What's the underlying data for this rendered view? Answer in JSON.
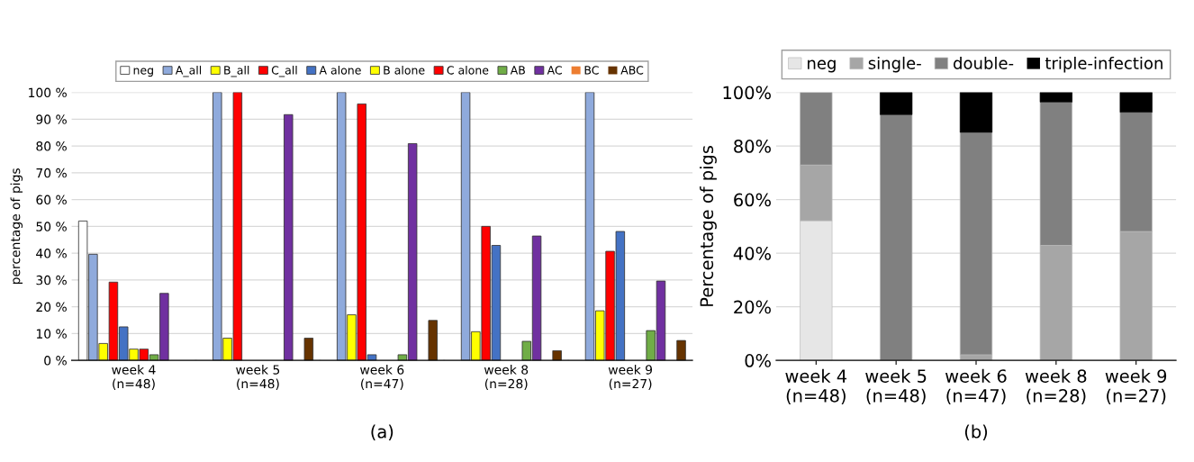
{
  "chart_data": [
    {
      "type": "bar",
      "ylabel": "percentage of pigs",
      "categories": [
        "week 4\n(n=48)",
        "week 5\n(n=48)",
        "week 6\n(n=47)",
        "week 8\n(n=28)",
        "week 9\n(n=27)"
      ],
      "ylim": [
        0,
        100
      ],
      "yticks": [
        {
          "value": 0,
          "label": "0 %"
        },
        {
          "value": 10,
          "label": "10 %"
        },
        {
          "value": 20,
          "label": "20 %"
        },
        {
          "value": 30,
          "label": "30 %"
        },
        {
          "value": 40,
          "label": "40 %"
        },
        {
          "value": 50,
          "label": "50 %"
        },
        {
          "value": 60,
          "label": "60 %"
        },
        {
          "value": 70,
          "label": "70 %"
        },
        {
          "value": 80,
          "label": "80 %"
        },
        {
          "value": 90,
          "label": "90 %"
        },
        {
          "value": 100,
          "label": "100 %"
        }
      ],
      "grid": "y",
      "legend": "top",
      "annotations": [
        "(a)"
      ],
      "series": [
        {
          "name": "neg",
          "color": "#ffffff",
          "values": [
            52,
            0,
            0,
            0,
            0
          ]
        },
        {
          "name": "A_all",
          "color": "#8faadc",
          "values": [
            39.6,
            100,
            100,
            100,
            100
          ]
        },
        {
          "name": "B_all",
          "color": "#ffff00",
          "values": [
            6.3,
            8.3,
            17,
            10.7,
            18.5
          ]
        },
        {
          "name": "C_all",
          "color": "#ff0000",
          "values": [
            29.2,
            100,
            95.7,
            50,
            40.7
          ]
        },
        {
          "name": "A alone",
          "color": "#4472c4",
          "values": [
            12.5,
            0,
            2.1,
            42.9,
            48.1
          ]
        },
        {
          "name": "B alone",
          "color": "#ffff00",
          "values": [
            4.2,
            0,
            0,
            0,
            0
          ]
        },
        {
          "name": "C alone",
          "color": "#ff0000",
          "values": [
            4.2,
            0,
            0,
            0,
            0
          ]
        },
        {
          "name": "AB",
          "color": "#70ad47",
          "values": [
            2.1,
            0,
            2.1,
            7.1,
            11.1
          ]
        },
        {
          "name": "AC",
          "color": "#7030a0",
          "values": [
            25,
            91.7,
            80.9,
            46.4,
            29.6
          ]
        },
        {
          "name": "BC",
          "color": "#ed7d31",
          "values": [
            0,
            0,
            0,
            0,
            0
          ]
        },
        {
          "name": "ABC",
          "color": "#663300",
          "values": [
            0,
            8.3,
            14.9,
            3.6,
            7.4
          ]
        }
      ]
    },
    {
      "type": "bar",
      "stacked": true,
      "ylabel": "Percentage of pigs",
      "categories": [
        "week 4\n(n=48)",
        "week 5\n(n=48)",
        "week 6\n(n=47)",
        "week 8\n(n=28)",
        "week 9\n(n=27)"
      ],
      "ylim": [
        0,
        100
      ],
      "yticks": [
        {
          "value": 0,
          "label": "0%"
        },
        {
          "value": 20,
          "label": "20%"
        },
        {
          "value": 40,
          "label": "40%"
        },
        {
          "value": 60,
          "label": "60%"
        },
        {
          "value": 80,
          "label": "80%"
        },
        {
          "value": 100,
          "label": "100%"
        }
      ],
      "grid": "y",
      "legend": "top",
      "annotations": [
        "(b)"
      ],
      "series": [
        {
          "name": "neg",
          "color": "#e6e6e6",
          "values": [
            52.1,
            0,
            0,
            0,
            0
          ]
        },
        {
          "name": "single-",
          "color": "#a6a6a6",
          "values": [
            20.8,
            0,
            2.1,
            42.9,
            48.1
          ]
        },
        {
          "name": "double-",
          "color": "#808080",
          "values": [
            27.1,
            91.7,
            83,
            53.5,
            44.5
          ]
        },
        {
          "name": "triple-infection",
          "color": "#000000",
          "values": [
            0,
            8.3,
            14.9,
            3.6,
            7.4
          ]
        }
      ]
    }
  ]
}
